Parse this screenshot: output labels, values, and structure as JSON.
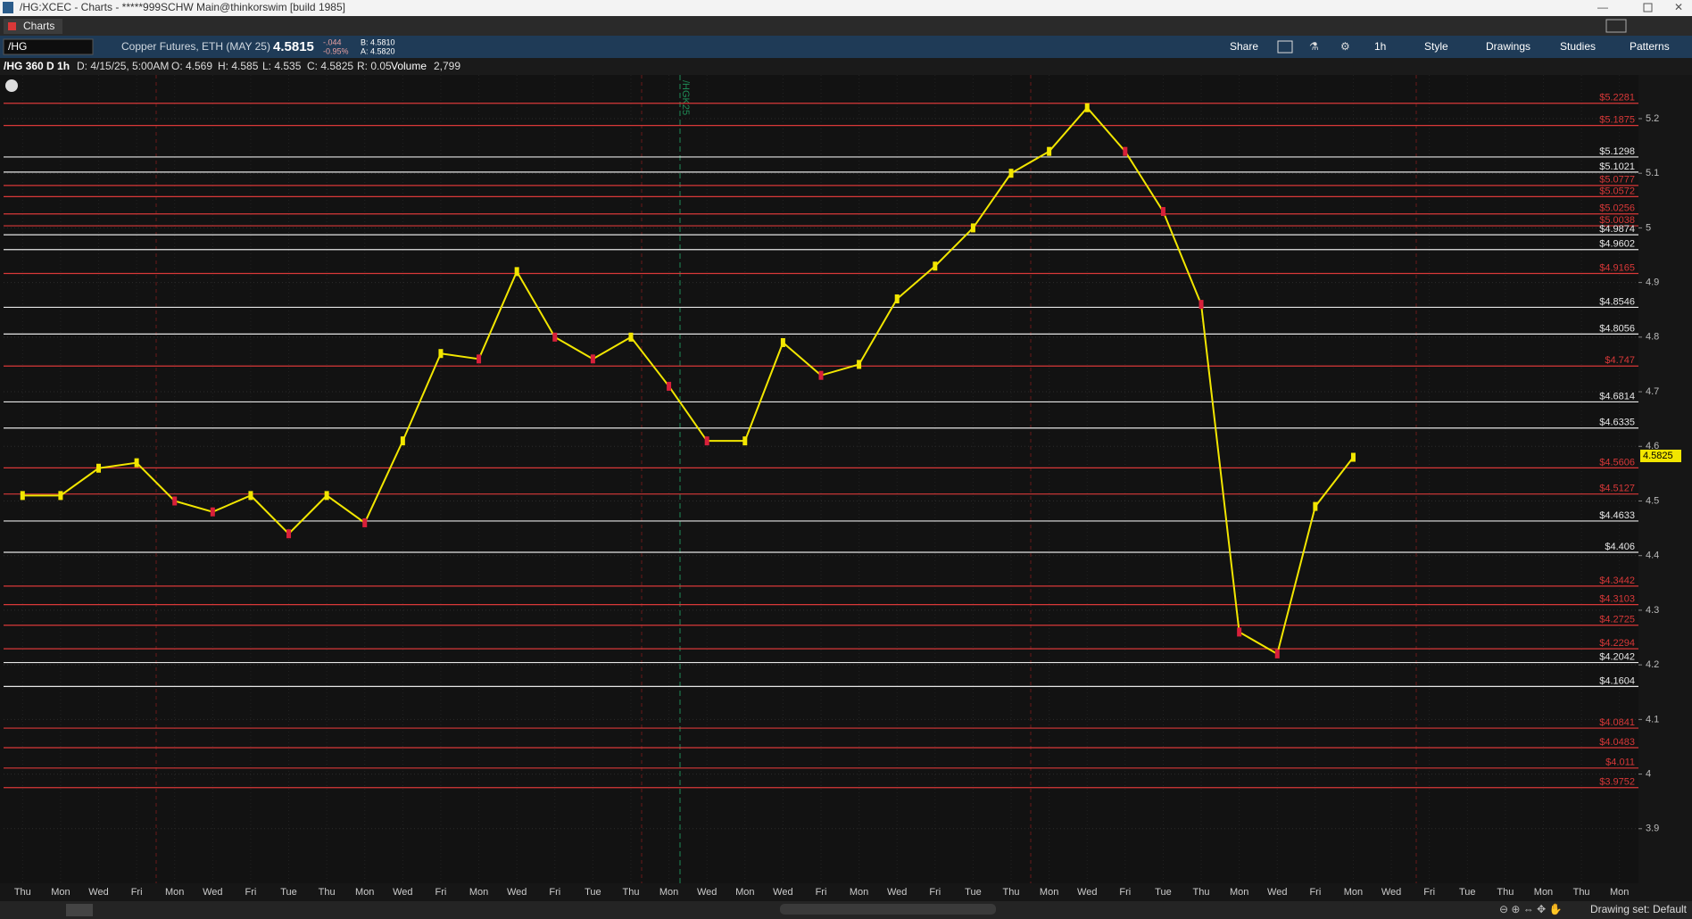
{
  "window": {
    "title": "/HG:XCEC - Charts - *****999SCHW Main@thinkorswim [build 1985]",
    "tab": "Charts"
  },
  "toolbar": {
    "symbol": "/HG",
    "description": "Copper Futures, ETH (MAY 25)",
    "last": "4.5815",
    "change": "-.044",
    "change_pct": "-0.95%",
    "bid": "B: 4.5810",
    "ask": "A: 4.5820",
    "buttons": [
      "Share",
      "1h",
      "Style",
      "Drawings",
      "Studies",
      "Patterns"
    ]
  },
  "chart_header": {
    "label": "/HG 360 D 1h",
    "date": "D: 4/15/25, 5:00AM",
    "open": "O: 4.569",
    "high": "H: 4.585",
    "low": "L: 4.535",
    "close": "C: 4.5825",
    "range": "R: 0.05",
    "volume_label": "Volume",
    "volume": "2,799"
  },
  "chart_data": {
    "type": "line",
    "color": "#f2e600",
    "categories": [
      "Thu",
      "Mon",
      "Wed",
      "Fri",
      "Mon",
      "Wed",
      "Fri",
      "Tue",
      "Thu",
      "Mon",
      "Wed",
      "Fri",
      "Mon",
      "Wed",
      "Fri",
      "Tue",
      "Thu",
      "Mon",
      "Wed",
      "Mon",
      "Wed",
      "Fri",
      "Mon",
      "Wed",
      "Fri",
      "Tue",
      "Thu",
      "Mon",
      "Wed",
      "Fri",
      "Tue",
      "Thu",
      "Mon",
      "Wed",
      "Fri",
      "Mon",
      "Wed",
      "Fri",
      "Tue",
      "Thu",
      "Mon",
      "Thu",
      "Mon"
    ],
    "values": [
      4.51,
      4.51,
      4.56,
      4.57,
      4.5,
      4.48,
      4.51,
      4.44,
      4.51,
      4.46,
      4.61,
      4.77,
      4.76,
      4.92,
      4.8,
      4.76,
      4.8,
      4.71,
      4.61,
      4.61,
      4.79,
      4.73,
      4.75,
      4.87,
      4.93,
      5.0,
      5.1,
      5.14,
      5.22,
      5.14,
      5.03,
      4.86,
      4.26,
      4.22,
      4.49,
      4.58,
      null,
      null,
      null,
      null,
      null,
      null,
      null
    ],
    "ylim": [
      3.8,
      5.28
    ],
    "yticks": [
      3.9,
      4,
      4.1,
      4.2,
      4.3,
      4.4,
      4.5,
      4.6,
      4.7,
      4.8,
      4.9,
      5,
      5.1,
      5.2
    ],
    "grid": true,
    "current_price": 4.5825,
    "expiry_marker": "/HGK25",
    "levels": [
      {
        "value": 5.2281,
        "label": "$5.2281",
        "color": "#d83838"
      },
      {
        "value": 5.1875,
        "label": "$5.1875",
        "color": "#d83838"
      },
      {
        "value": 5.1298,
        "label": "$5.1298",
        "color": "#e6e6e6"
      },
      {
        "value": 5.1021,
        "label": "$5.1021",
        "color": "#e6e6e6"
      },
      {
        "value": 5.0777,
        "label": "$5.0777",
        "color": "#d83838"
      },
      {
        "value": 5.0572,
        "label": "$5.0572",
        "color": "#d83838"
      },
      {
        "value": 5.0256,
        "label": "$5.0256",
        "color": "#d83838"
      },
      {
        "value": 5.0038,
        "label": "$5.0038",
        "color": "#d83838"
      },
      {
        "value": 4.9874,
        "label": "$4.9874",
        "color": "#e6e6e6"
      },
      {
        "value": 4.9602,
        "label": "$4.9602",
        "color": "#e6e6e6"
      },
      {
        "value": 4.9165,
        "label": "$4.9165",
        "color": "#d83838"
      },
      {
        "value": 4.8546,
        "label": "$4.8546",
        "color": "#e6e6e6"
      },
      {
        "value": 4.8056,
        "label": "$4.8056",
        "color": "#e6e6e6"
      },
      {
        "value": 4.747,
        "label": "$4.747",
        "color": "#d83838"
      },
      {
        "value": 4.6814,
        "label": "$4.6814",
        "color": "#e6e6e6"
      },
      {
        "value": 4.6335,
        "label": "$4.6335",
        "color": "#e6e6e6"
      },
      {
        "value": 4.5606,
        "label": "$4.5606",
        "color": "#d83838"
      },
      {
        "value": 4.5127,
        "label": "$4.5127",
        "color": "#d83838"
      },
      {
        "value": 4.4633,
        "label": "$4.4633",
        "color": "#e6e6e6"
      },
      {
        "value": 4.406,
        "label": "$4.406",
        "color": "#e6e6e6"
      },
      {
        "value": 4.3442,
        "label": "$4.3442",
        "color": "#d83838"
      },
      {
        "value": 4.3103,
        "label": "$4.3103",
        "color": "#d83838"
      },
      {
        "value": 4.2725,
        "label": "$4.2725",
        "color": "#d83838"
      },
      {
        "value": 4.2294,
        "label": "$4.2294",
        "color": "#d83838"
      },
      {
        "value": 4.2042,
        "label": "$4.2042",
        "color": "#e6e6e6"
      },
      {
        "value": 4.1604,
        "label": "$4.1604",
        "color": "#e6e6e6"
      },
      {
        "value": 4.0841,
        "label": "$4.0841",
        "color": "#d83838"
      },
      {
        "value": 4.0483,
        "label": "$4.0483",
        "color": "#d83838"
      },
      {
        "value": 4.011,
        "label": "$4.011",
        "color": "#d83838"
      },
      {
        "value": 3.9752,
        "label": "$3.9752",
        "color": "#d83838"
      }
    ]
  },
  "footer": {
    "drawing_set": "Drawing set: Default"
  }
}
